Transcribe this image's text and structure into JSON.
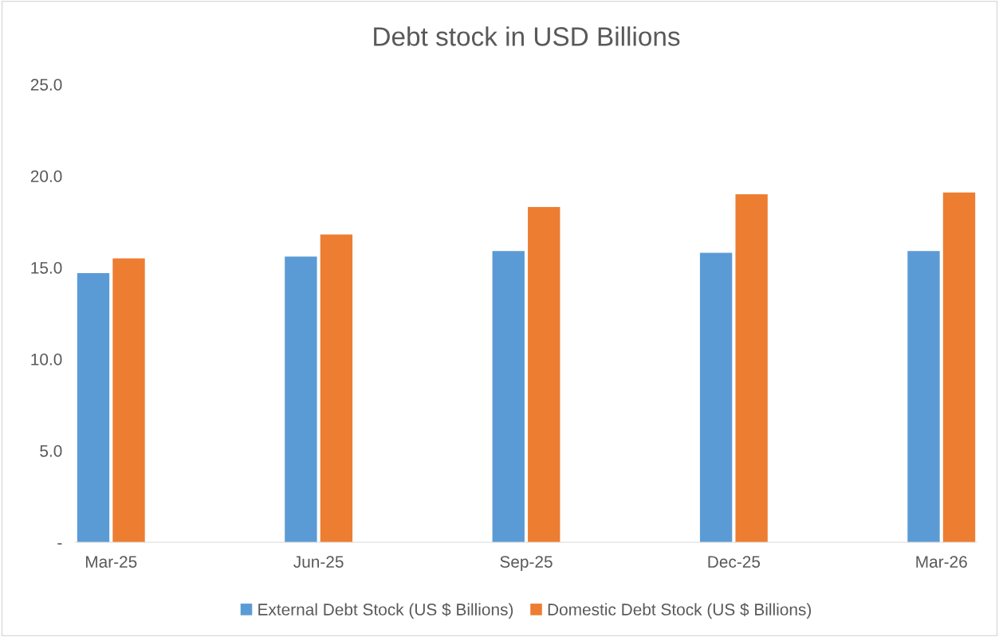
{
  "chart_data": {
    "type": "bar",
    "title": "Debt stock in USD Billions",
    "categories": [
      "Mar-25",
      "Jun-25",
      "Sep-25",
      "Dec-25",
      "Mar-26"
    ],
    "series": [
      {
        "name": "External Debt Stock (US $ Billions)",
        "color": "#5b9bd5",
        "values": [
          14.7,
          15.6,
          15.9,
          15.8,
          15.9
        ]
      },
      {
        "name": "Domestic Debt Stock (US $ Billions)",
        "color": "#ed7d31",
        "values": [
          15.5,
          16.8,
          18.3,
          19.0,
          19.1
        ]
      }
    ],
    "ylim": [
      0,
      25
    ],
    "yticks": [
      {
        "value": 0,
        "label": "-"
      },
      {
        "value": 5,
        "label": "5.0"
      },
      {
        "value": 10,
        "label": "10.0"
      },
      {
        "value": 15,
        "label": "15.0"
      },
      {
        "value": 20,
        "label": "20.0"
      },
      {
        "value": 25,
        "label": "25.0"
      }
    ],
    "grid": false,
    "legend": "bottom"
  }
}
